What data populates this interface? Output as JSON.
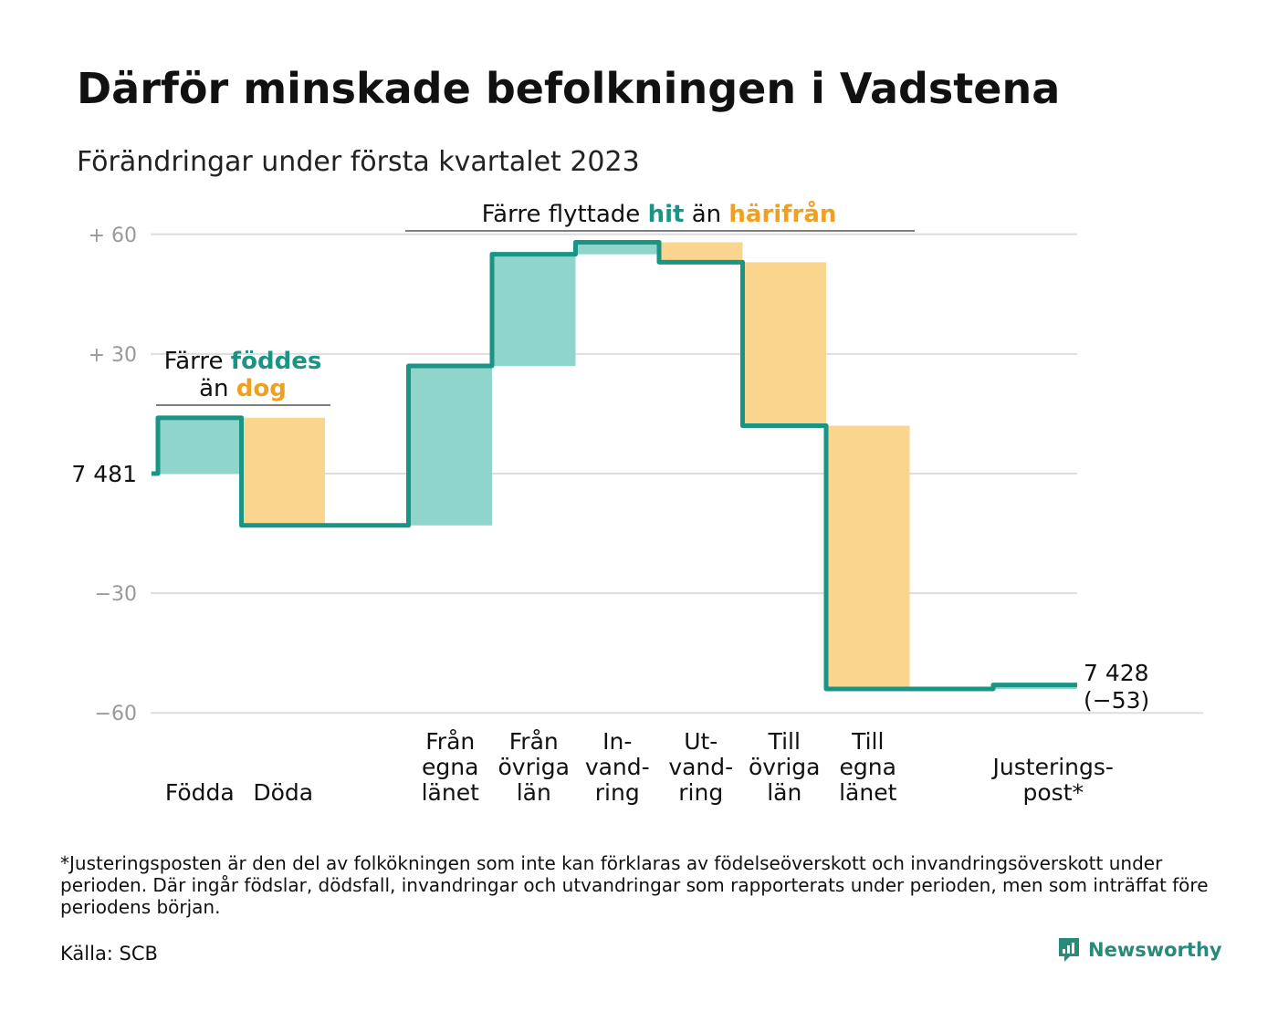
{
  "title": "Därför minskade befolkningen i Vadstena",
  "subtitle": "Förändringar under första kvartalet 2023",
  "footnote": "*Justeringsposten är den del av folkökningen som inte kan förklaras av födelseöverskott och invandringsöverskott under perioden. Där ingår födslar, dödsfall, invandringar och utvandringar som rapporterats under perioden, men som inträffat före periodens början.",
  "source": "Källa: SCB",
  "brand": "Newsworthy",
  "colors": {
    "line": "#1a9484",
    "positive": "#8fd5cc",
    "negative": "#f9d58e",
    "grid": "#dddddd",
    "tick": "#999999",
    "teal_text": "#1a9484",
    "orange_text": "#f0a020"
  },
  "annotations": {
    "births": {
      "line1_pre": "Färre ",
      "line1_hl": "föddes",
      "line2_pre": "än ",
      "line2_hl": "dog"
    },
    "migration": {
      "pre": "Färre flyttade ",
      "hl1": "hit",
      "mid": " än ",
      "hl2": "härifrån"
    }
  },
  "chart_data": {
    "type": "waterfall",
    "start": 7481,
    "start_label": "7 481",
    "end": 7428,
    "end_label": "7 428",
    "end_change_label": "(−53)",
    "y_ticks": [
      {
        "value": 60,
        "label": "+ 60"
      },
      {
        "value": 30,
        "label": "+ 30"
      },
      {
        "value": 0,
        "label": ""
      },
      {
        "value": -30,
        "label": "−30"
      },
      {
        "value": -60,
        "label": "−60"
      }
    ],
    "ylim": [
      -60,
      60
    ],
    "steps": [
      {
        "label": [
          "Födda"
        ],
        "change": 14,
        "slot": 0
      },
      {
        "label": [
          "Döda"
        ],
        "change": -27,
        "slot": 1
      },
      {
        "label": [
          "Från",
          "egna",
          "länet"
        ],
        "change": 40,
        "slot": 3
      },
      {
        "label": [
          "Från",
          "övriga",
          "län"
        ],
        "change": 28,
        "slot": 4
      },
      {
        "label": [
          "In-",
          "vand-",
          "ring"
        ],
        "change": 3,
        "slot": 5
      },
      {
        "label": [
          "Ut-",
          "vand-",
          "ring"
        ],
        "change": -5,
        "slot": 6
      },
      {
        "label": [
          "Till",
          "övriga",
          "län"
        ],
        "change": -41,
        "slot": 7
      },
      {
        "label": [
          "Till",
          "egna",
          "länet"
        ],
        "change": -66,
        "slot": 8
      },
      {
        "label": [
          "Justerings-",
          "post*"
        ],
        "change": 1,
        "slot": 10
      }
    ]
  }
}
